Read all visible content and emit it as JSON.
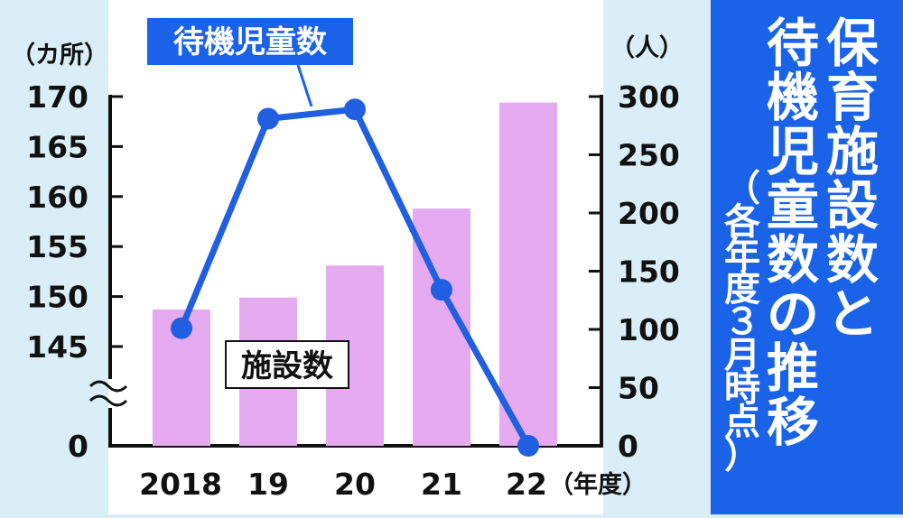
{
  "title_lines": [
    "保育施設数と",
    "待機児童数の推移"
  ],
  "subtitle": "（各年度３月時点）",
  "colors": {
    "background": "#d9eef6",
    "plot_background": "#ffffff",
    "bar": "#e6aaf0",
    "line": "#1f5fe0",
    "title_panel": "#1a63e8"
  },
  "chart_data": {
    "type": "bar+line",
    "categories": [
      "2018",
      "19",
      "20",
      "21",
      "22"
    ],
    "x_unit": "（年度）",
    "left_axis": {
      "unit": "（カ所）",
      "ticks": [
        "170",
        "165",
        "160",
        "155",
        "150",
        "145",
        "0"
      ],
      "axis_break": true,
      "ylim": [
        145,
        170
      ]
    },
    "right_axis": {
      "unit": "（人）",
      "ticks": [
        "300",
        "250",
        "200",
        "150",
        "100",
        "50",
        "0"
      ],
      "ylim": [
        0,
        300
      ]
    },
    "series": [
      {
        "name": "施設数",
        "type": "bar",
        "axis": "left",
        "values": [
          148.7,
          149.9,
          153.1,
          158.8,
          169.4
        ]
      },
      {
        "name": "待機児童数",
        "type": "line",
        "axis": "right",
        "values": [
          101,
          281,
          289,
          134,
          0
        ]
      }
    ]
  }
}
